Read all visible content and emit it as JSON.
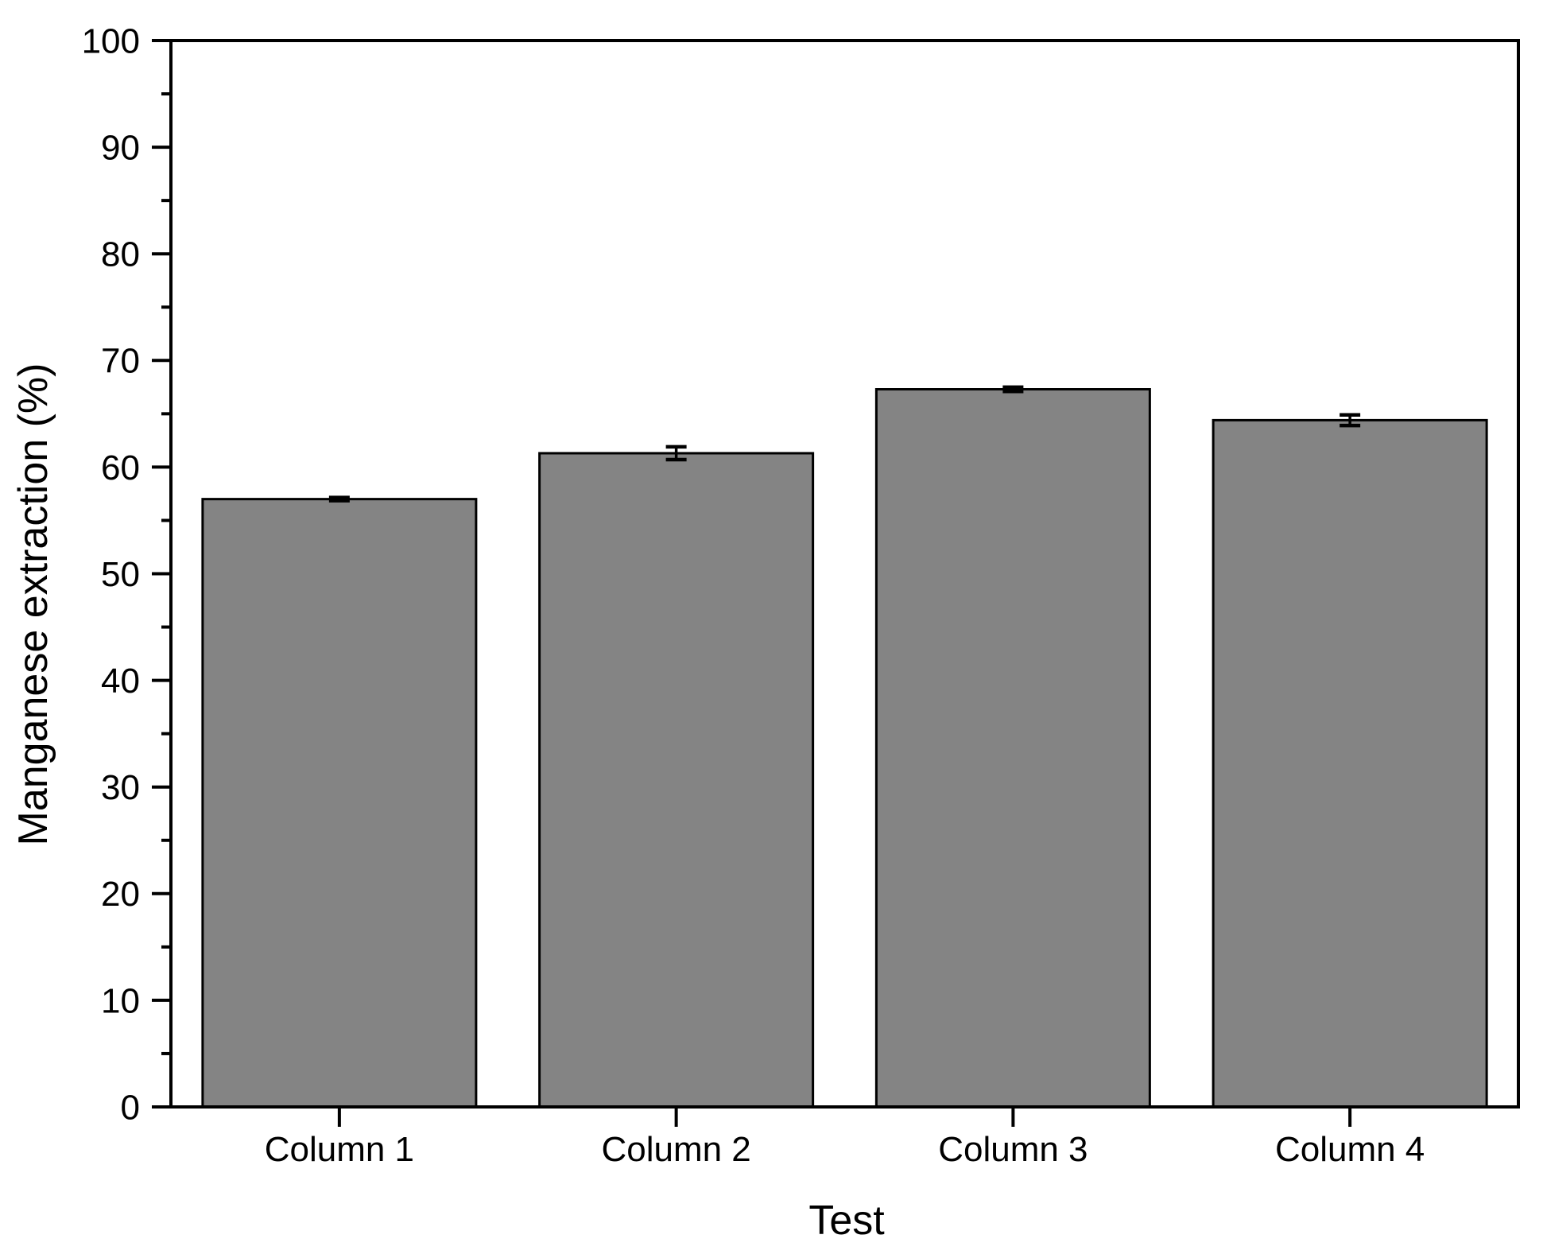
{
  "figure": {
    "background": "#ffffff",
    "text_color": "#000000"
  },
  "chart_data": {
    "type": "bar",
    "title": "",
    "xlabel": "Test",
    "ylabel": "Manganese extraction (%)",
    "categories": [
      "Column 1",
      "Column 2",
      "Column 3",
      "Column 4"
    ],
    "values": [
      57.0,
      61.3,
      67.3,
      64.4
    ],
    "error_bars": [
      0.15,
      0.6,
      0.2,
      0.5
    ],
    "ylim": [
      0,
      100
    ],
    "ytick_step": 10,
    "ytick_minor_step": 5,
    "ytick_labels": [
      "0",
      "10",
      "20",
      "30",
      "40",
      "50",
      "60",
      "70",
      "80",
      "90",
      "100"
    ],
    "grid": false,
    "legend": null,
    "bar_fill": "#848484",
    "bar_stroke": "#000000",
    "axis_color": "#000000"
  }
}
